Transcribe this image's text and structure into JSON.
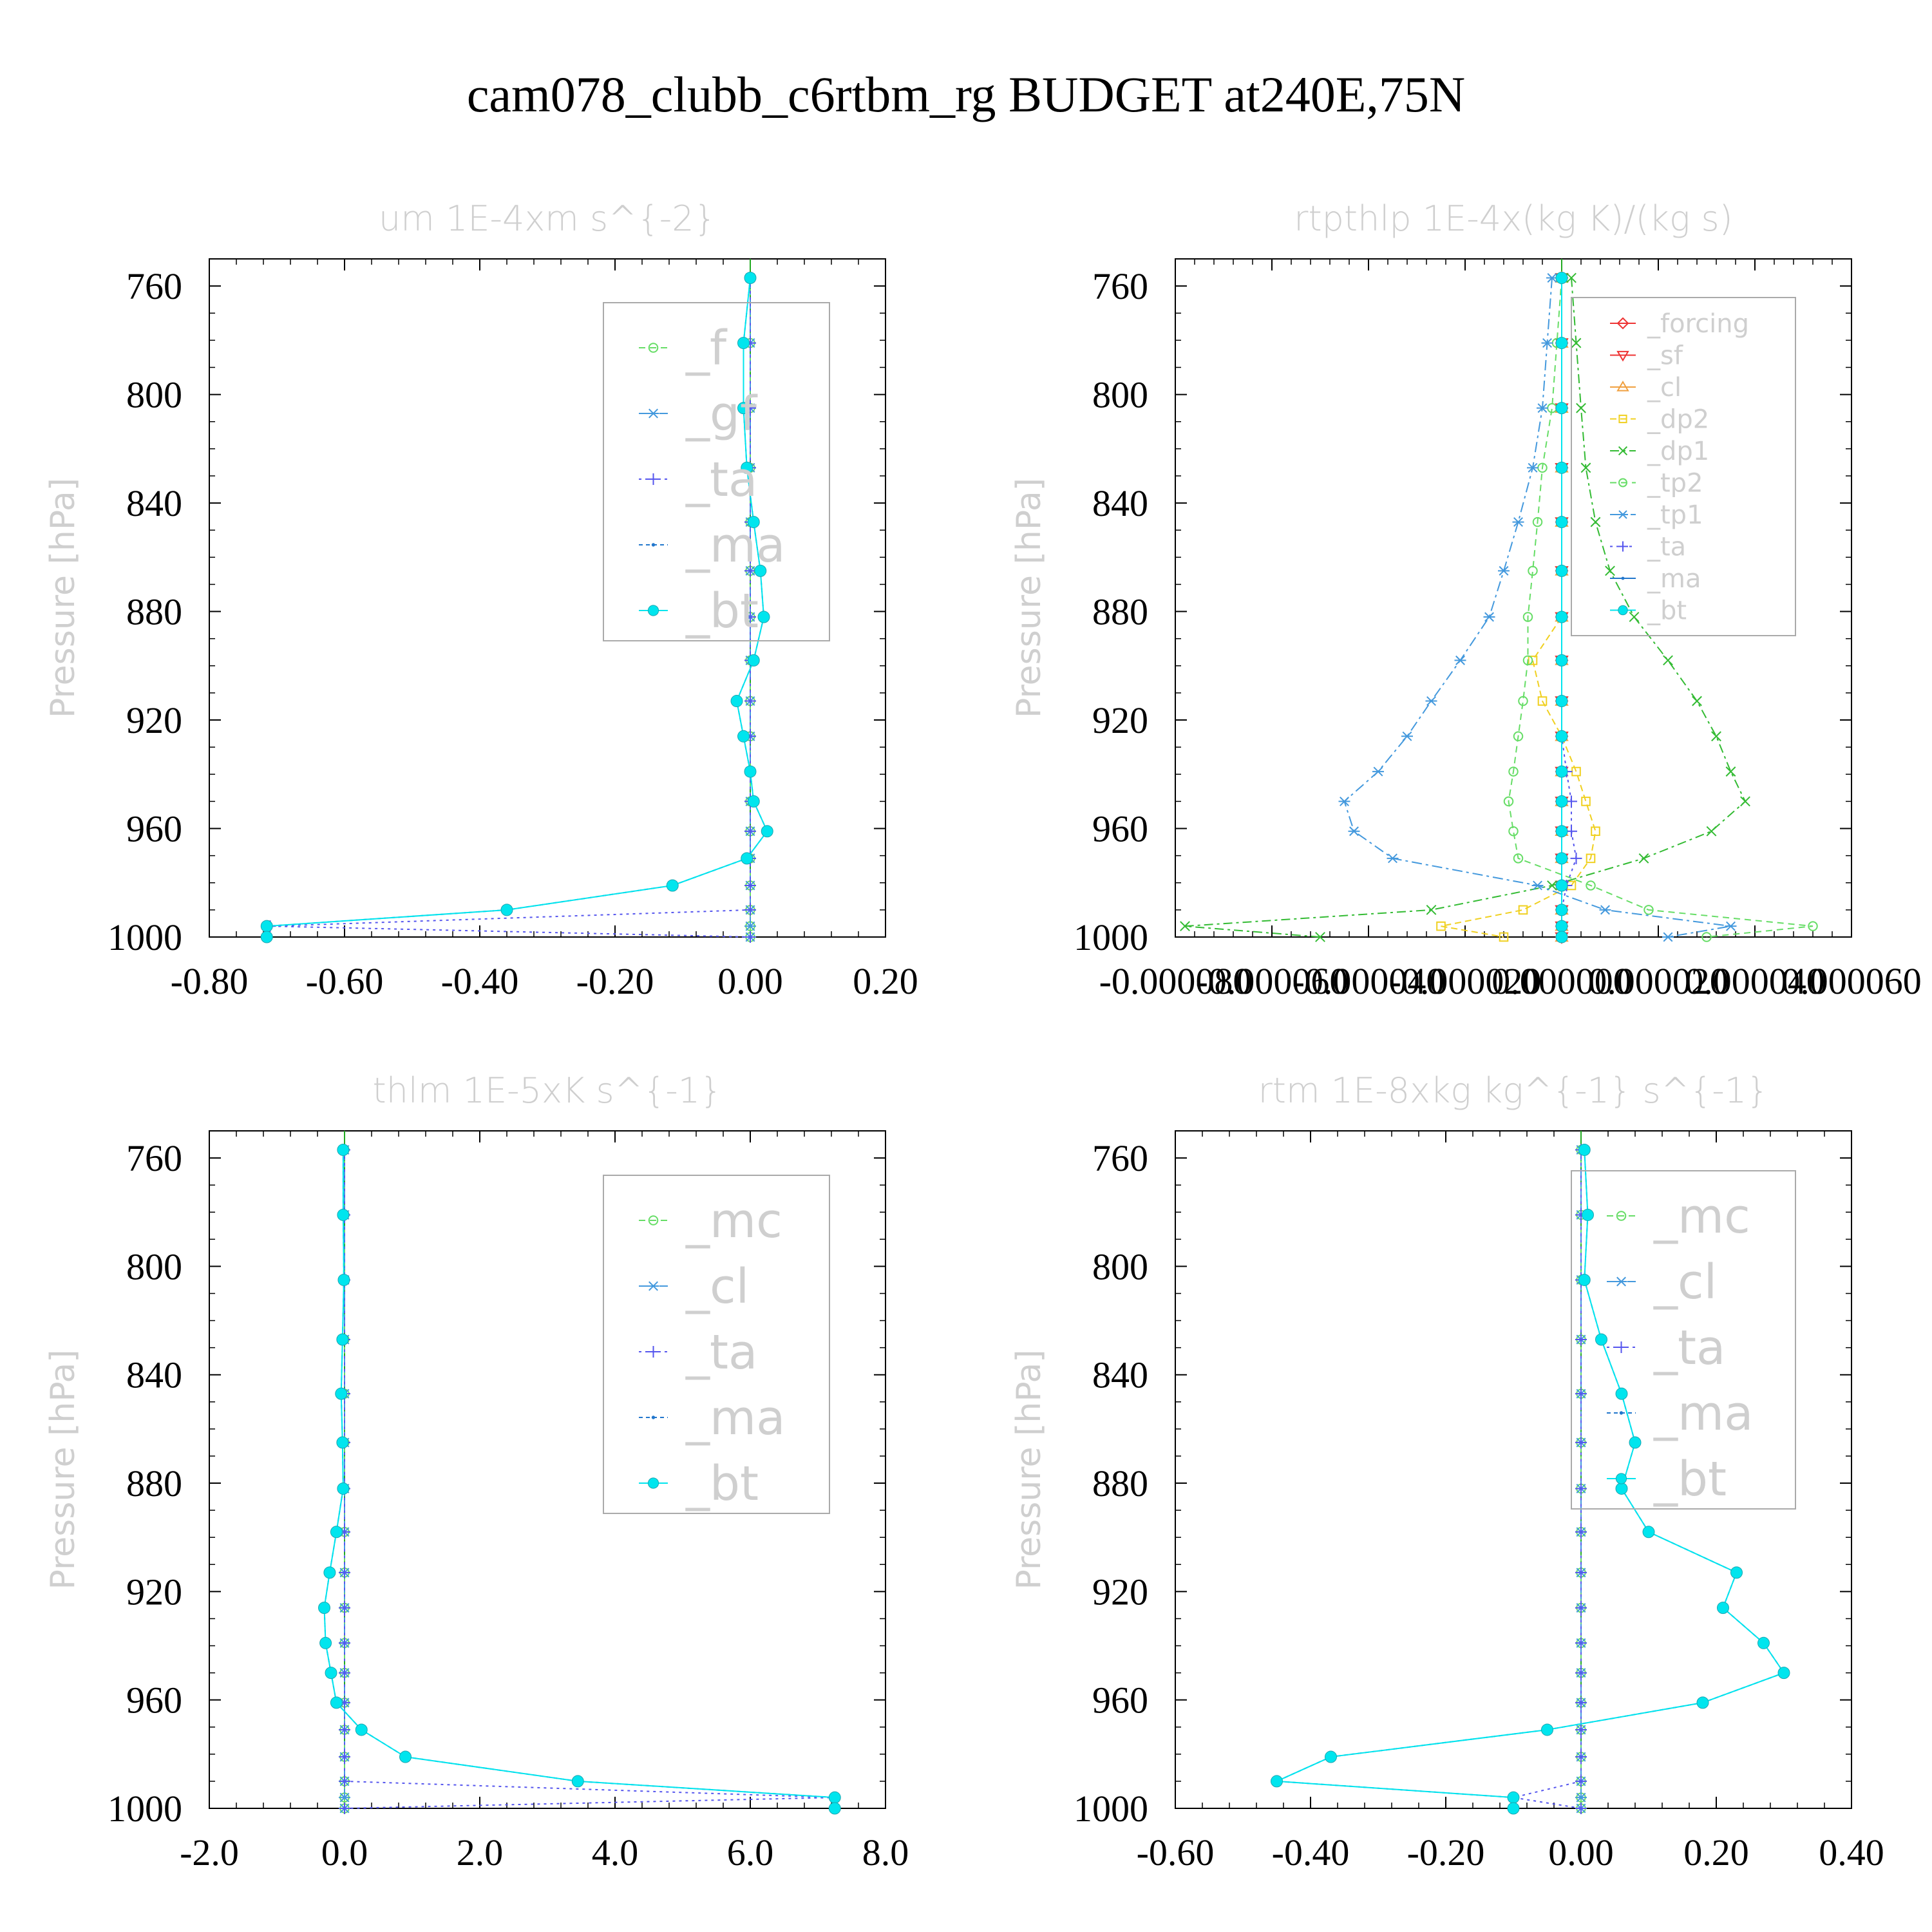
{
  "title": "cam078_clubb_c6rtbm_rg  BUDGET at240E,75N",
  "chart_data": [
    {
      "type": "line",
      "title": "um   1E-4xm s^{-2}",
      "ylabel": "Pressure [hPa]",
      "xlim": [
        -0.8,
        0.2
      ],
      "ylim": [
        1000,
        750
      ],
      "xticks": [
        "-0.80",
        "-0.60",
        "-0.40",
        "-0.20",
        "0.00",
        "0.20"
      ],
      "yticks": [
        "760",
        "800",
        "840",
        "880",
        "920",
        "960",
        "1000"
      ],
      "legend_size": "large",
      "y": [
        757,
        781,
        805,
        827,
        847,
        865,
        882,
        898,
        913,
        926,
        939,
        950,
        961,
        971,
        981,
        990,
        996,
        1000
      ],
      "series": [
        {
          "name": "_f",
          "color": "#66dd66",
          "marker": "circle",
          "dash": "10,7",
          "values": [
            0,
            0,
            0,
            0,
            0,
            0,
            0,
            0,
            0,
            0,
            0,
            0,
            0,
            0,
            0,
            0,
            0,
            0
          ]
        },
        {
          "name": "_gf",
          "color": "#4499dd",
          "marker": "asterisk",
          "dash": "16,6,4,6",
          "values": [
            0,
            0,
            0,
            0,
            0,
            0,
            0,
            0,
            0,
            0,
            0,
            0,
            0,
            0,
            0,
            0,
            0,
            0
          ]
        },
        {
          "name": "_ta",
          "color": "#5555ee",
          "marker": "plus",
          "dash": "4,6",
          "values": [
            0,
            0,
            0,
            0,
            0,
            0,
            0,
            0,
            0,
            0,
            0,
            0,
            0,
            0,
            0,
            0,
            -0.71,
            0
          ]
        },
        {
          "name": "_ma",
          "color": "#2277cc",
          "marker": "dot",
          "dash": "6,5",
          "values": [
            0,
            -0.01,
            -0.01,
            -0.005,
            0.005,
            0.015,
            0.02,
            0.005,
            -0.02,
            -0.01,
            0,
            0.005,
            0.025,
            -0.005,
            -0.115,
            -0.36,
            -0.715,
            -0.715
          ]
        },
        {
          "name": "_bt",
          "color": "#00e5ee",
          "marker": "filled",
          "dash": "",
          "values": [
            0,
            -0.01,
            -0.01,
            -0.005,
            0.005,
            0.015,
            0.02,
            0.005,
            -0.02,
            -0.01,
            0,
            0.005,
            0.025,
            -0.005,
            -0.115,
            -0.36,
            -0.715,
            -0.715
          ]
        }
      ]
    },
    {
      "type": "line",
      "title": "rtpthlp   1E-4x(kg K)/(kg s)",
      "ylabel": "Pressure [hPa]",
      "xlim": [
        -8e-05,
        6e-05
      ],
      "ylim": [
        1000,
        750
      ],
      "xticks": [
        "-0.000080",
        "-0.000060",
        "-0.000040",
        "-0.000020",
        "0.000000",
        "0.000020",
        "0.000040",
        "0.000060"
      ],
      "yticks": [
        "760",
        "800",
        "840",
        "880",
        "920",
        "960",
        "1000"
      ],
      "legend_size": "small",
      "y": [
        757,
        781,
        805,
        827,
        847,
        865,
        882,
        898,
        913,
        926,
        939,
        950,
        961,
        971,
        981,
        990,
        996,
        1000
      ],
      "series": [
        {
          "name": "_forcing",
          "color": "#ee3333",
          "marker": "diamond",
          "dash": "",
          "values": [
            0,
            0,
            0,
            0,
            0,
            0,
            0,
            0,
            0,
            0,
            0,
            0,
            0,
            0,
            0,
            0,
            0,
            0
          ]
        },
        {
          "name": "_sf",
          "color": "#ee3333",
          "marker": "tridown",
          "dash": "",
          "values": [
            0,
            0,
            0,
            0,
            0,
            0,
            0,
            0,
            0,
            0,
            0,
            0,
            0,
            0,
            0,
            0,
            0,
            0
          ]
        },
        {
          "name": "_cl",
          "color": "#f0a040",
          "marker": "triup",
          "dash": "",
          "values": [
            0,
            0,
            0,
            0,
            0,
            0,
            0,
            0,
            0,
            0,
            0,
            0,
            0,
            0,
            0,
            0,
            0,
            0
          ]
        },
        {
          "name": "_dp2",
          "color": "#f0d020",
          "marker": "square",
          "dash": "10,6",
          "values": [
            0,
            0,
            0,
            0,
            0,
            0,
            0,
            -6e-06,
            -4e-06,
            0,
            3e-06,
            5e-06,
            7e-06,
            6e-06,
            2e-06,
            -8e-06,
            -2.5e-05,
            -1.2e-05
          ]
        },
        {
          "name": "_dp1",
          "color": "#33bb33",
          "marker": "cross",
          "dash": "14,6,4,6",
          "values": [
            2e-06,
            3e-06,
            4e-06,
            5e-06,
            7e-06,
            1e-05,
            1.5e-05,
            2.2e-05,
            2.8e-05,
            3.2e-05,
            3.5e-05,
            3.8e-05,
            3.1e-05,
            1.7e-05,
            -2e-06,
            -2.7e-05,
            -7.8e-05,
            -5e-05
          ]
        },
        {
          "name": "_tp2",
          "color": "#66dd66",
          "marker": "circle",
          "dash": "10,7",
          "values": [
            0,
            -1e-06,
            -2e-06,
            -4e-06,
            -5e-06,
            -6e-06,
            -7e-06,
            -7e-06,
            -8e-06,
            -9e-06,
            -1e-05,
            -1.1e-05,
            -1e-05,
            -9e-06,
            6e-06,
            1.8e-05,
            5.2e-05,
            3e-05
          ]
        },
        {
          "name": "_tp1",
          "color": "#4499dd",
          "marker": "asterisk",
          "dash": "16,6,4,6",
          "values": [
            -2e-06,
            -3e-06,
            -4e-06,
            -6e-06,
            -9e-06,
            -1.2e-05,
            -1.5e-05,
            -2.1e-05,
            -2.7e-05,
            -3.2e-05,
            -3.8e-05,
            -4.5e-05,
            -4.3e-05,
            -3.5e-05,
            -5e-06,
            9e-06,
            3.5e-05,
            2.2e-05
          ]
        },
        {
          "name": "_ta",
          "color": "#5555ee",
          "marker": "plus",
          "dash": "4,6",
          "values": [
            0,
            0,
            0,
            0,
            0,
            0,
            0,
            0,
            0,
            0,
            1e-06,
            2e-06,
            2e-06,
            3e-06,
            1e-06,
            0,
            0,
            0
          ]
        },
        {
          "name": "_ma",
          "color": "#2277cc",
          "marker": "dot",
          "dash": "",
          "values": [
            0,
            0,
            0,
            0,
            0,
            0,
            0,
            0,
            0,
            0,
            0,
            0,
            0,
            0,
            0,
            0,
            0,
            0
          ]
        },
        {
          "name": "_bt",
          "color": "#00e5ee",
          "marker": "filled",
          "dash": "",
          "values": [
            0,
            0,
            0,
            0,
            0,
            0,
            0,
            0,
            0,
            0,
            0,
            0,
            0,
            0,
            0,
            0,
            0,
            0
          ]
        }
      ]
    },
    {
      "type": "line",
      "title": "thlm   1E-5xK s^{-1}",
      "ylabel": "Pressure [hPa]",
      "xlim": [
        -2,
        8
      ],
      "ylim": [
        1000,
        750
      ],
      "xticks": [
        "-2.0",
        "0.0",
        "2.0",
        "4.0",
        "6.0",
        "8.0"
      ],
      "yticks": [
        "760",
        "800",
        "840",
        "880",
        "920",
        "960",
        "1000"
      ],
      "legend_size": "large",
      "y": [
        757,
        781,
        805,
        827,
        847,
        865,
        882,
        898,
        913,
        926,
        939,
        950,
        961,
        971,
        981,
        990,
        996,
        1000
      ],
      "series": [
        {
          "name": "_mc",
          "color": "#66dd66",
          "marker": "circle",
          "dash": "10,7",
          "values": [
            0,
            0,
            0,
            0,
            0,
            0,
            0,
            0,
            0,
            0,
            0,
            0,
            0,
            0,
            0,
            0,
            0,
            0
          ]
        },
        {
          "name": "_cl",
          "color": "#4499dd",
          "marker": "asterisk",
          "dash": "16,6,4,6",
          "values": [
            0,
            0,
            0,
            0,
            0,
            0,
            0,
            0,
            0,
            0,
            0,
            0,
            0,
            0,
            0,
            0,
            0,
            0
          ]
        },
        {
          "name": "_ta",
          "color": "#5555ee",
          "marker": "plus",
          "dash": "4,6",
          "values": [
            0,
            0,
            0,
            0,
            0,
            0,
            0,
            0,
            0,
            0,
            0,
            0,
            0,
            0,
            0,
            0,
            7.25,
            0
          ]
        },
        {
          "name": "_ma",
          "color": "#2277cc",
          "marker": "dot",
          "dash": "6,5",
          "values": [
            -0.02,
            -0.02,
            -0.01,
            -0.03,
            -0.05,
            -0.03,
            -0.02,
            -0.12,
            -0.22,
            -0.3,
            -0.28,
            -0.2,
            -0.12,
            0.25,
            0.9,
            3.45,
            7.25,
            7.25
          ]
        },
        {
          "name": "_bt",
          "color": "#00e5ee",
          "marker": "filled",
          "dash": "",
          "values": [
            -0.02,
            -0.02,
            -0.01,
            -0.03,
            -0.05,
            -0.03,
            -0.02,
            -0.12,
            -0.22,
            -0.3,
            -0.28,
            -0.2,
            -0.12,
            0.25,
            0.9,
            3.45,
            7.25,
            7.25
          ]
        }
      ]
    },
    {
      "type": "line",
      "title": "rtm   1E-8xkg kg^{-1} s^{-1}",
      "ylabel": "Pressure [hPa]",
      "xlim": [
        -0.6,
        0.4
      ],
      "ylim": [
        1000,
        750
      ],
      "xticks": [
        "-0.60",
        "-0.40",
        "-0.20",
        "0.00",
        "0.20",
        "0.40"
      ],
      "yticks": [
        "760",
        "800",
        "840",
        "880",
        "920",
        "960",
        "1000"
      ],
      "legend_size": "large",
      "y": [
        757,
        781,
        805,
        827,
        847,
        865,
        882,
        898,
        913,
        926,
        939,
        950,
        961,
        971,
        981,
        990,
        996,
        1000
      ],
      "series": [
        {
          "name": "_mc",
          "color": "#66dd66",
          "marker": "circle",
          "dash": "10,7",
          "values": [
            0,
            0,
            0,
            0,
            0,
            0,
            0,
            0,
            0,
            0,
            0,
            0,
            0,
            0,
            0,
            0,
            0,
            0
          ]
        },
        {
          "name": "_cl",
          "color": "#4499dd",
          "marker": "asterisk",
          "dash": "16,6,4,6",
          "values": [
            0,
            0,
            0,
            0,
            0,
            0,
            0,
            0,
            0,
            0,
            0,
            0,
            0,
            0,
            0,
            0,
            0,
            0
          ]
        },
        {
          "name": "_ta",
          "color": "#5555ee",
          "marker": "plus",
          "dash": "4,6",
          "values": [
            0,
            0,
            0,
            0,
            0,
            0,
            0,
            0,
            0,
            0,
            0,
            0,
            0,
            0,
            0,
            0,
            -0.1,
            0
          ]
        },
        {
          "name": "_ma",
          "color": "#2277cc",
          "marker": "dot",
          "dash": "6,5",
          "values": [
            0.005,
            0.01,
            0.005,
            0.03,
            0.06,
            0.08,
            0.06,
            0.1,
            0.23,
            0.21,
            0.27,
            0.3,
            0.18,
            -0.05,
            -0.37,
            -0.45,
            -0.1,
            -0.1
          ]
        },
        {
          "name": "_bt",
          "color": "#00e5ee",
          "marker": "filled",
          "dash": "",
          "values": [
            0.005,
            0.01,
            0.005,
            0.03,
            0.06,
            0.08,
            0.06,
            0.1,
            0.23,
            0.21,
            0.27,
            0.3,
            0.18,
            -0.05,
            -0.37,
            -0.45,
            -0.1,
            -0.1
          ]
        }
      ]
    }
  ]
}
